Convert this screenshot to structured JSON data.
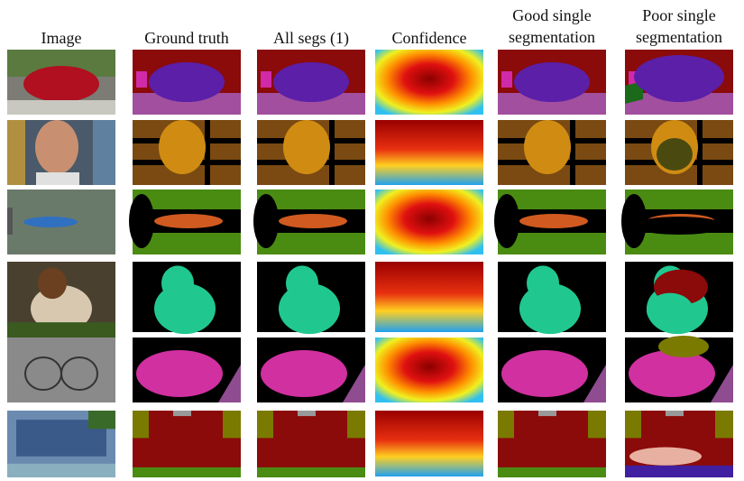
{
  "headers": [
    {
      "lines": [
        "Image"
      ]
    },
    {
      "lines": [
        "Ground truth"
      ]
    },
    {
      "lines": [
        "All segs (1)"
      ]
    },
    {
      "lines": [
        "Confidence"
      ]
    },
    {
      "lines": [
        "Good single",
        "segmentation"
      ]
    },
    {
      "lines": [
        "Poor single",
        "segmentation"
      ]
    }
  ]
}
